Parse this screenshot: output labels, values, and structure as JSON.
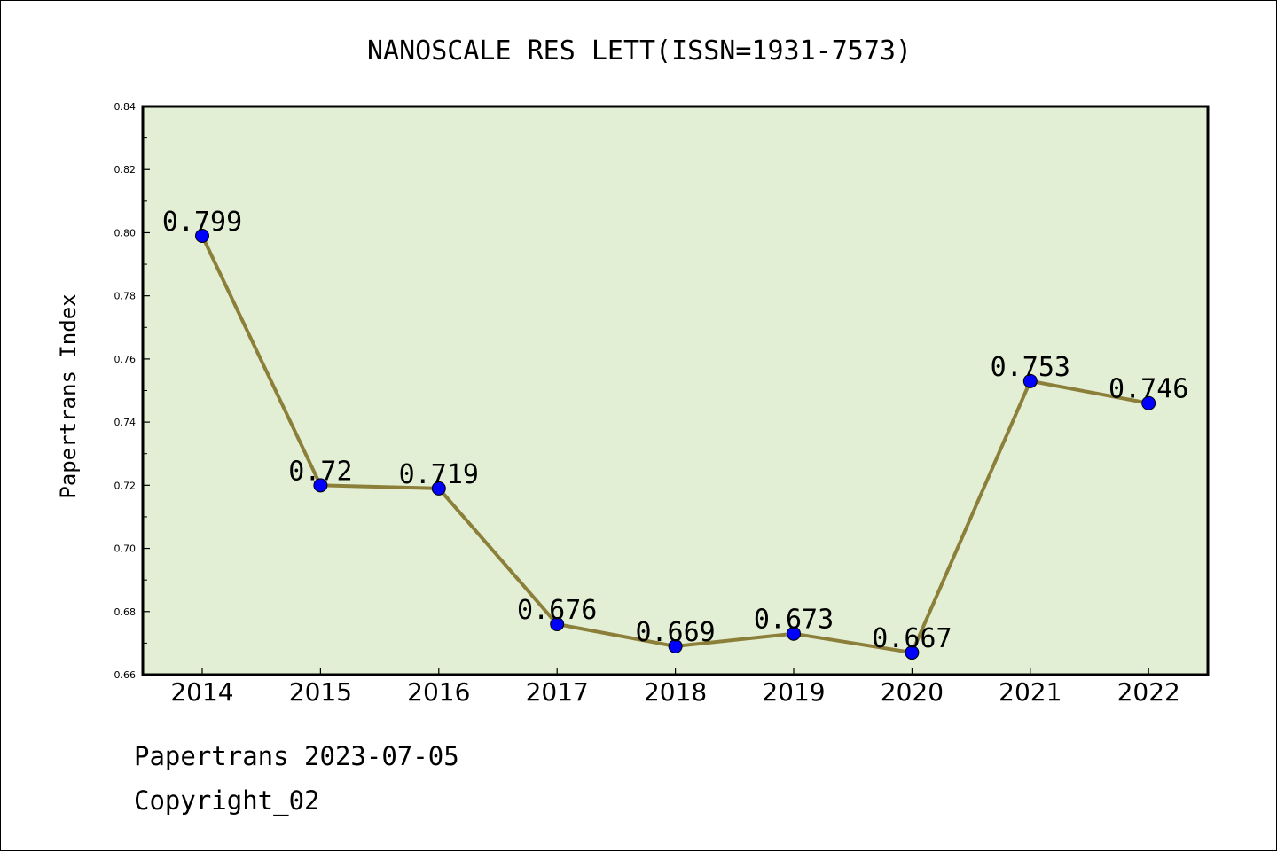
{
  "chart_data": {
    "type": "line",
    "title": "NANOSCALE RES LETT(ISSN=1931-7573)",
    "xlabel": "",
    "ylabel": "Papertrans Index",
    "categories": [
      "2014",
      "2015",
      "2016",
      "2017",
      "2018",
      "2019",
      "2020",
      "2021",
      "2022"
    ],
    "series": [
      {
        "values": [
          0.799,
          0.72,
          0.719,
          0.676,
          0.669,
          0.673,
          0.667,
          0.753,
          0.746
        ],
        "labels": [
          "0.799",
          "0.72",
          "0.719",
          "0.676",
          "0.669",
          "0.673",
          "0.667",
          "0.753",
          "0.746"
        ]
      }
    ],
    "ylim": [
      0.66,
      0.84
    ],
    "yticks": [
      "0.66",
      "0.68",
      "0.70",
      "0.72",
      "0.74",
      "0.76",
      "0.78",
      "0.80",
      "0.82",
      "0.84"
    ],
    "grid": false,
    "colors": {
      "plot_background": "#e2efd5",
      "line": "#8b7f3a",
      "marker": "#0000ff"
    }
  },
  "footer": {
    "date_line": "Papertrans 2023-07-05",
    "copyright": "Copyright_02"
  }
}
